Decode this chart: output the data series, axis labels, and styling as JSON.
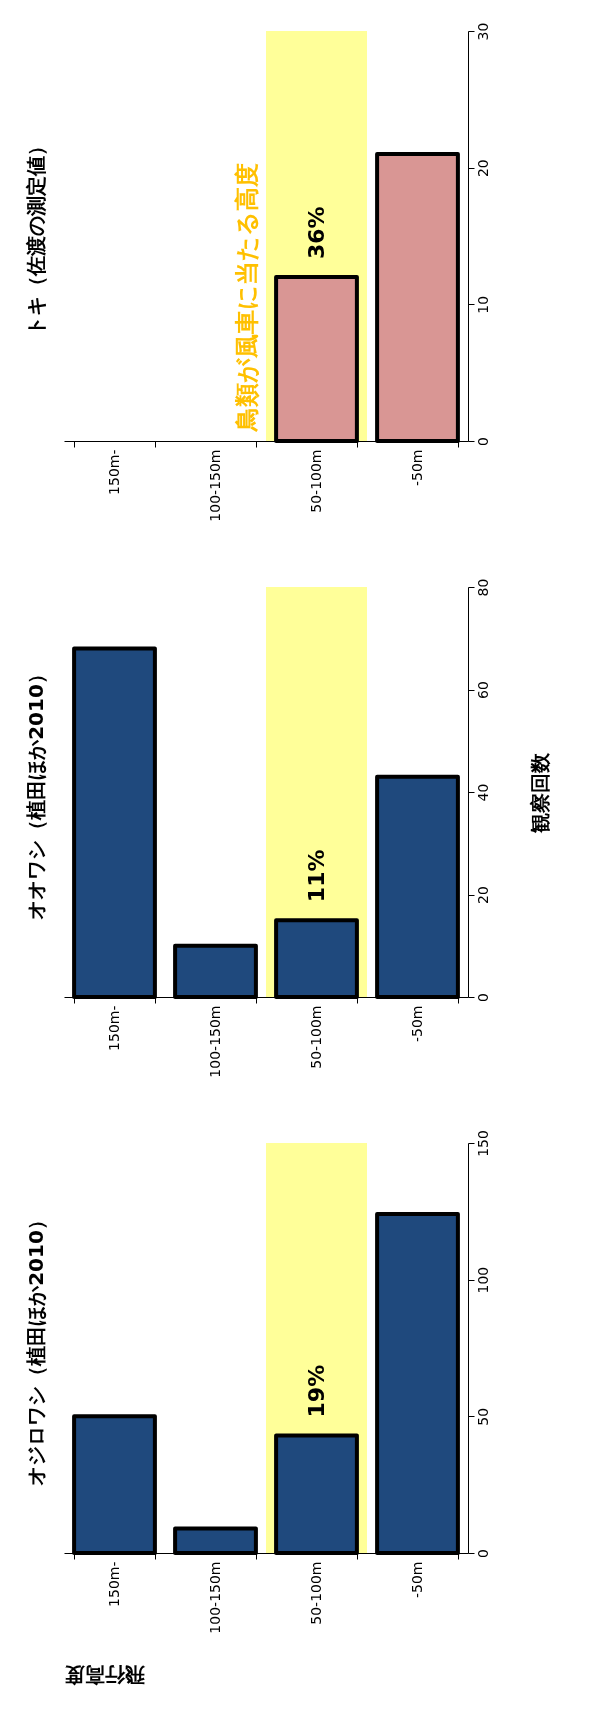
{
  "chart_data": [
    {
      "type": "bar",
      "title": "トキ（佐渡の測定値）",
      "categories": [
        "150m-",
        "100-150m",
        "50-100m",
        "-50m"
      ],
      "values": [
        null,
        null,
        12,
        21
      ],
      "color": "#d99694",
      "ylim": [
        0,
        30
      ],
      "yticks": [
        0,
        10,
        20,
        30
      ],
      "annotations": [
        "36%"
      ],
      "bands": [
        {
          "axis": "x",
          "from": "50-100m",
          "to": "50-100m",
          "label": "鳥類が風車に当たる高度",
          "color": "#ffff99"
        }
      ]
    },
    {
      "type": "bar",
      "title": "オオワシ（植田ほか2010）",
      "ylabel": "観察回数",
      "categories": [
        "150m-",
        "100-150m",
        "50-100m",
        "-50m"
      ],
      "values": [
        68,
        10,
        15,
        43
      ],
      "color": "#1f497d",
      "ylim": [
        0,
        80
      ],
      "yticks": [
        0,
        20,
        40,
        60,
        80
      ],
      "annotations": [
        "11%"
      ],
      "bands": [
        {
          "axis": "x",
          "from": "50-100m",
          "to": "50-100m",
          "color": "#ffff99"
        }
      ]
    },
    {
      "type": "bar",
      "title": "オジロワシ（植田ほか2010）",
      "xlabel": "飛行高度",
      "categories": [
        "150m-",
        "100-150m",
        "50-100m",
        "-50m"
      ],
      "values": [
        50,
        9,
        43,
        124
      ],
      "color": "#1f497d",
      "ylim": [
        0,
        150
      ],
      "yticks": [
        0,
        50,
        100,
        150
      ],
      "annotations": [
        "19%"
      ],
      "bands": [
        {
          "axis": "x",
          "from": "50-100m",
          "to": "50-100m",
          "color": "#ffff99"
        }
      ]
    }
  ]
}
